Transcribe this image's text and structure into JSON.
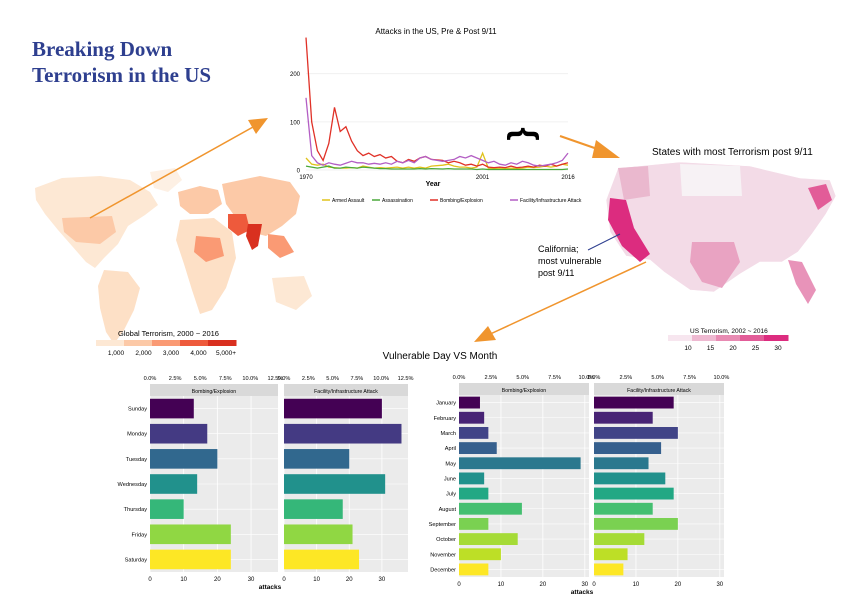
{
  "page": {
    "title_line1": "Breaking Down",
    "title_line2": "Terrorism in the US"
  },
  "colors": {
    "title": "#2e3f8f",
    "arrow": "#f0952e",
    "panel_bg": "#ebebeb",
    "strip_bg": "#d9d9d9",
    "grid": "#ffffff"
  },
  "world_map": {
    "legend_title": "Global Terrorism, 2000 ~ 2016",
    "legend_ticks": [
      "1,000",
      "2,000",
      "3,000",
      "4,000",
      "5,000+"
    ],
    "legend_colors": [
      "#fde8d4",
      "#fcc9a7",
      "#fa9a74",
      "#ee5a3c",
      "#d9301f"
    ]
  },
  "us_map": {
    "title": "States with most Terrorism post 9/11",
    "legend_title": "US Terrorism, 2002 ~ 2016",
    "legend_ticks": [
      "10",
      "15",
      "20",
      "25",
      "30"
    ],
    "legend_colors": [
      "#f7e6ef",
      "#eeb9d1",
      "#e88bb3",
      "#e25c98",
      "#dc2c7f"
    ],
    "annotation": [
      "California;",
      "most vulnerable",
      "post 9/11"
    ]
  },
  "section_titles": {
    "vulnerable": "Vulnerable Day VS Month"
  },
  "chart_data": [
    {
      "type": "line",
      "title": "Attacks in the US, Pre & Post 9/11",
      "xlabel": "Year",
      "ylabel": "",
      "x_ticks": [
        "1970",
        "2001",
        "2016"
      ],
      "y_ticks": [
        "0",
        "100",
        "200"
      ],
      "xlim": [
        1970,
        2016
      ],
      "ylim": [
        0,
        270
      ],
      "annotation": "}",
      "x": [
        1970,
        1971,
        1972,
        1973,
        1974,
        1975,
        1976,
        1977,
        1978,
        1979,
        1980,
        1981,
        1982,
        1983,
        1984,
        1985,
        1986,
        1987,
        1988,
        1989,
        1990,
        1991,
        1992,
        1994,
        1995,
        1996,
        1997,
        1998,
        1999,
        2000,
        2001,
        2002,
        2003,
        2004,
        2005,
        2006,
        2007,
        2008,
        2009,
        2010,
        2011,
        2012,
        2013,
        2014,
        2015,
        2016
      ],
      "series": [
        {
          "name": "Armed Assault",
          "color": "#e0c21c",
          "values": [
            25,
            12,
            10,
            12,
            6,
            5,
            4,
            4,
            5,
            4,
            8,
            6,
            4,
            5,
            4,
            5,
            6,
            4,
            6,
            4,
            6,
            4,
            8,
            10,
            12,
            8,
            6,
            6,
            4,
            6,
            35,
            4,
            3,
            4,
            3,
            4,
            3,
            4,
            6,
            5,
            6,
            8,
            6,
            8,
            12,
            10
          ]
        },
        {
          "name": "Assassination",
          "color": "#4aa83a",
          "values": [
            8,
            6,
            4,
            6,
            8,
            4,
            4,
            6,
            5,
            4,
            6,
            5,
            4,
            3,
            3,
            2,
            2,
            2,
            2,
            2,
            3,
            2,
            3,
            2,
            3,
            2,
            2,
            2,
            2,
            1,
            2,
            1,
            1,
            1,
            1,
            1,
            1,
            1,
            1,
            1,
            1,
            1,
            1,
            1,
            1,
            2
          ]
        },
        {
          "name": "Bombing/Explosion",
          "color": "#e03127",
          "values": [
            275,
            100,
            40,
            20,
            55,
            130,
            80,
            90,
            60,
            40,
            30,
            35,
            28,
            32,
            25,
            28,
            18,
            15,
            22,
            18,
            25,
            28,
            22,
            20,
            15,
            18,
            15,
            10,
            12,
            8,
            12,
            6,
            5,
            6,
            5,
            8,
            5,
            6,
            8,
            6,
            10,
            8,
            12,
            8,
            12,
            15
          ]
        },
        {
          "name": "Facility/Infrastructure Attack",
          "color": "#b35ec4",
          "values": [
            150,
            30,
            15,
            10,
            15,
            12,
            10,
            14,
            18,
            15,
            15,
            12,
            14,
            12,
            15,
            12,
            18,
            15,
            20,
            15,
            25,
            28,
            22,
            18,
            20,
            22,
            28,
            25,
            30,
            25,
            20,
            15,
            18,
            12,
            10,
            15,
            12,
            18,
            15,
            10,
            8,
            10,
            12,
            15,
            20,
            35
          ]
        }
      ]
    },
    {
      "type": "bar",
      "orientation": "horizontal",
      "title": "",
      "xlabel": "attacks",
      "ylabel": "",
      "categories": [
        "Sunday",
        "Monday",
        "Tuesday",
        "Wednesday",
        "Thursday",
        "Friday",
        "Saturday"
      ],
      "xlim": [
        0,
        38
      ],
      "x_ticks": [
        "0",
        "10",
        "20",
        "30"
      ],
      "top_ticks": [
        "0.0%",
        "2.5%",
        "5.0%",
        "7.5%",
        "10.0%",
        "12.5%"
      ],
      "colors": [
        "#440154",
        "#443a83",
        "#31688e",
        "#21918c",
        "#35b779",
        "#90d743",
        "#fde725"
      ],
      "series": [
        {
          "name": "Bombing/Explosion",
          "values": [
            13,
            17,
            20,
            14,
            10,
            24,
            24
          ]
        },
        {
          "name": "Facility/Infrastructure Attack",
          "values": [
            30,
            36,
            20,
            31,
            18,
            21,
            23
          ]
        }
      ]
    },
    {
      "type": "bar",
      "orientation": "horizontal",
      "title": "",
      "xlabel": "attacks",
      "ylabel": "",
      "categories": [
        "January",
        "February",
        "March",
        "April",
        "May",
        "June",
        "July",
        "August",
        "September",
        "October",
        "November",
        "December"
      ],
      "xlim": [
        0,
        31
      ],
      "x_ticks": [
        "0",
        "10",
        "20",
        "30"
      ],
      "top_ticks": [
        "0.0%",
        "2.5%",
        "5.0%",
        "7.5%",
        "10.0%"
      ],
      "colors": [
        "#440154",
        "#482475",
        "#414487",
        "#355f8d",
        "#2a788e",
        "#21918c",
        "#22a884",
        "#44bf70",
        "#7ad151",
        "#a5db36",
        "#bddf26",
        "#fde725"
      ],
      "series": [
        {
          "name": "Bombing/Explosion",
          "values": [
            5,
            6,
            7,
            9,
            29,
            6,
            7,
            15,
            7,
            14,
            10,
            7
          ]
        },
        {
          "name": "Facility/Infrastructure Attack",
          "values": [
            19,
            14,
            20,
            16,
            13,
            17,
            19,
            14,
            20,
            12,
            8,
            7
          ]
        }
      ]
    }
  ]
}
